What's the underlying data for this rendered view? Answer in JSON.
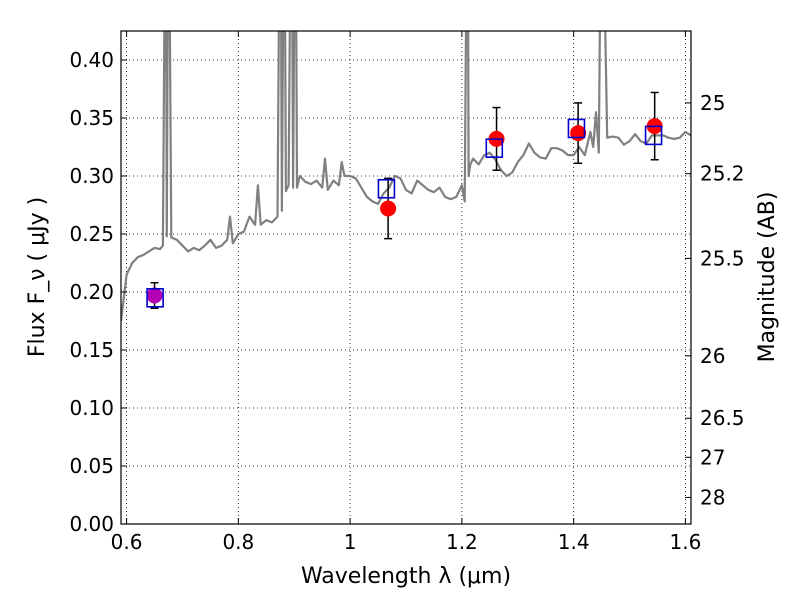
{
  "chart_data": {
    "type": "scatter",
    "xlabel": "Wavelength  λ (μm)",
    "ylabel": "Flux  F_ν  ( μJy )",
    "y2label": "Magnitude (AB)",
    "xlim": [
      0.59,
      1.61
    ],
    "ylim": [
      0.0,
      0.425
    ],
    "grid": true,
    "x_ticks": [
      0.6,
      0.8,
      1.0,
      1.2,
      1.4,
      1.6
    ],
    "x_tick_labels": [
      "0.6",
      "0.8",
      "1",
      "1.2",
      "1.4",
      "1.6"
    ],
    "y_ticks": [
      0.0,
      0.05,
      0.1,
      0.15,
      0.2,
      0.25,
      0.3,
      0.35,
      0.4
    ],
    "y_tick_labels": [
      "0.00",
      "0.05",
      "0.10",
      "0.15",
      "0.20",
      "0.25",
      "0.30",
      "0.35",
      "0.40"
    ],
    "y2_ticks": [
      {
        "label": "25",
        "flux": 0.363
      },
      {
        "label": "25.2",
        "flux": 0.302
      },
      {
        "label": "25.5",
        "flux": 0.229
      },
      {
        "label": "26",
        "flux": 0.145
      },
      {
        "label": "26.5",
        "flux": 0.0912
      },
      {
        "label": "27",
        "flux": 0.0575
      },
      {
        "label": "28",
        "flux": 0.0229
      }
    ],
    "series": [
      {
        "kind": "line",
        "color": "#808080",
        "x": [
          0.59,
          0.6,
          0.61,
          0.62,
          0.63,
          0.64,
          0.65,
          0.66,
          0.665,
          0.67,
          0.672,
          0.675,
          0.68,
          0.69,
          0.7,
          0.71,
          0.72,
          0.73,
          0.74,
          0.75,
          0.76,
          0.77,
          0.78,
          0.785,
          0.79,
          0.8,
          0.81,
          0.82,
          0.83,
          0.835,
          0.84,
          0.85,
          0.86,
          0.87,
          0.875,
          0.878,
          0.882,
          0.885,
          0.89,
          0.895,
          0.898,
          0.902,
          0.905,
          0.91,
          0.92,
          0.93,
          0.94,
          0.95,
          0.955,
          0.96,
          0.97,
          0.98,
          0.985,
          0.99,
          1.0,
          1.01,
          1.02,
          1.03,
          1.04,
          1.05,
          1.06,
          1.07,
          1.08,
          1.09,
          1.1,
          1.11,
          1.12,
          1.13,
          1.14,
          1.15,
          1.16,
          1.17,
          1.18,
          1.19,
          1.2,
          1.205,
          1.21,
          1.212,
          1.215,
          1.22,
          1.23,
          1.24,
          1.25,
          1.26,
          1.27,
          1.28,
          1.29,
          1.3,
          1.31,
          1.32,
          1.33,
          1.34,
          1.35,
          1.36,
          1.37,
          1.38,
          1.39,
          1.4,
          1.41,
          1.42,
          1.43,
          1.435,
          1.44,
          1.445,
          1.45,
          1.46,
          1.47,
          1.48,
          1.49,
          1.5,
          1.51,
          1.52,
          1.53,
          1.54,
          1.55,
          1.56,
          1.57,
          1.58,
          1.59,
          1.6,
          1.61
        ],
        "y": [
          0.175,
          0.215,
          0.225,
          0.23,
          0.232,
          0.235,
          0.238,
          0.237,
          0.24,
          0.6,
          0.248,
          0.6,
          0.247,
          0.245,
          0.24,
          0.235,
          0.238,
          0.236,
          0.24,
          0.245,
          0.238,
          0.24,
          0.245,
          0.265,
          0.242,
          0.25,
          0.252,
          0.265,
          0.258,
          0.292,
          0.258,
          0.262,
          0.26,
          0.265,
          0.6,
          0.27,
          0.6,
          0.287,
          0.292,
          0.6,
          0.29,
          0.6,
          0.29,
          0.3,
          0.295,
          0.293,
          0.296,
          0.29,
          0.315,
          0.288,
          0.296,
          0.292,
          0.312,
          0.3,
          0.3,
          0.298,
          0.29,
          0.282,
          0.278,
          0.276,
          0.285,
          0.29,
          0.3,
          0.298,
          0.288,
          0.285,
          0.296,
          0.292,
          0.288,
          0.286,
          0.29,
          0.282,
          0.28,
          0.282,
          0.292,
          0.278,
          0.6,
          0.3,
          0.31,
          0.315,
          0.31,
          0.318,
          0.32,
          0.314,
          0.305,
          0.3,
          0.303,
          0.312,
          0.318,
          0.328,
          0.32,
          0.316,
          0.315,
          0.324,
          0.324,
          0.322,
          0.318,
          0.318,
          0.325,
          0.318,
          0.338,
          0.325,
          0.355,
          0.32,
          0.6,
          0.333,
          0.334,
          0.333,
          0.327,
          0.33,
          0.336,
          0.33,
          0.328,
          0.335,
          0.335,
          0.335,
          0.333,
          0.332,
          0.333,
          0.338,
          0.335
        ]
      },
      {
        "kind": "points",
        "color": "#ff0000",
        "marker": "circle",
        "x": [
          0.65,
          1.068,
          1.262,
          1.408,
          1.545
        ],
        "y": [
          0.197,
          0.272,
          0.332,
          0.337,
          0.343
        ],
        "yerr": [
          0.011,
          0.026,
          0.027,
          0.026,
          0.029
        ],
        "point_colors": [
          "#b400b4",
          "#ff0000",
          "#ff0000",
          "#ff0000",
          "#ff0000"
        ]
      },
      {
        "kind": "points",
        "color": "#0000cc",
        "marker": "open-square",
        "x": [
          0.651,
          1.065,
          1.258,
          1.405,
          1.543
        ],
        "y": [
          0.195,
          0.289,
          0.324,
          0.341,
          0.335
        ]
      }
    ]
  }
}
